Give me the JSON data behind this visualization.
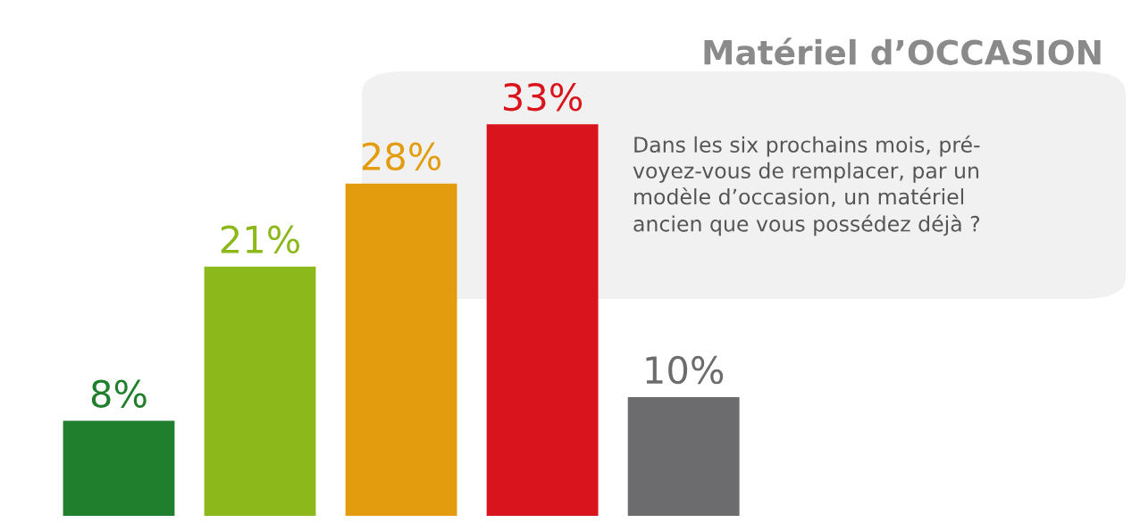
{
  "chart_data": {
    "type": "bar",
    "title": "Matériel d’OCCASION",
    "subtitle": "Dans les six prochains mois, pré-\nvoyez-vous de remplacer, par un\nmodèle d’occasion, un matériel\nancien que vous possédez déjà ?",
    "categories": [
      null,
      null,
      null,
      null,
      null
    ],
    "values": [
      8,
      21,
      28,
      33,
      10
    ],
    "colors": [
      "#1f7f2c",
      "#8cb81c",
      "#e39c0e",
      "#d9141c",
      "#6c6c6e"
    ],
    "value_labels": [
      "8%",
      "21%",
      "28%",
      "33%",
      "10%"
    ]
  }
}
